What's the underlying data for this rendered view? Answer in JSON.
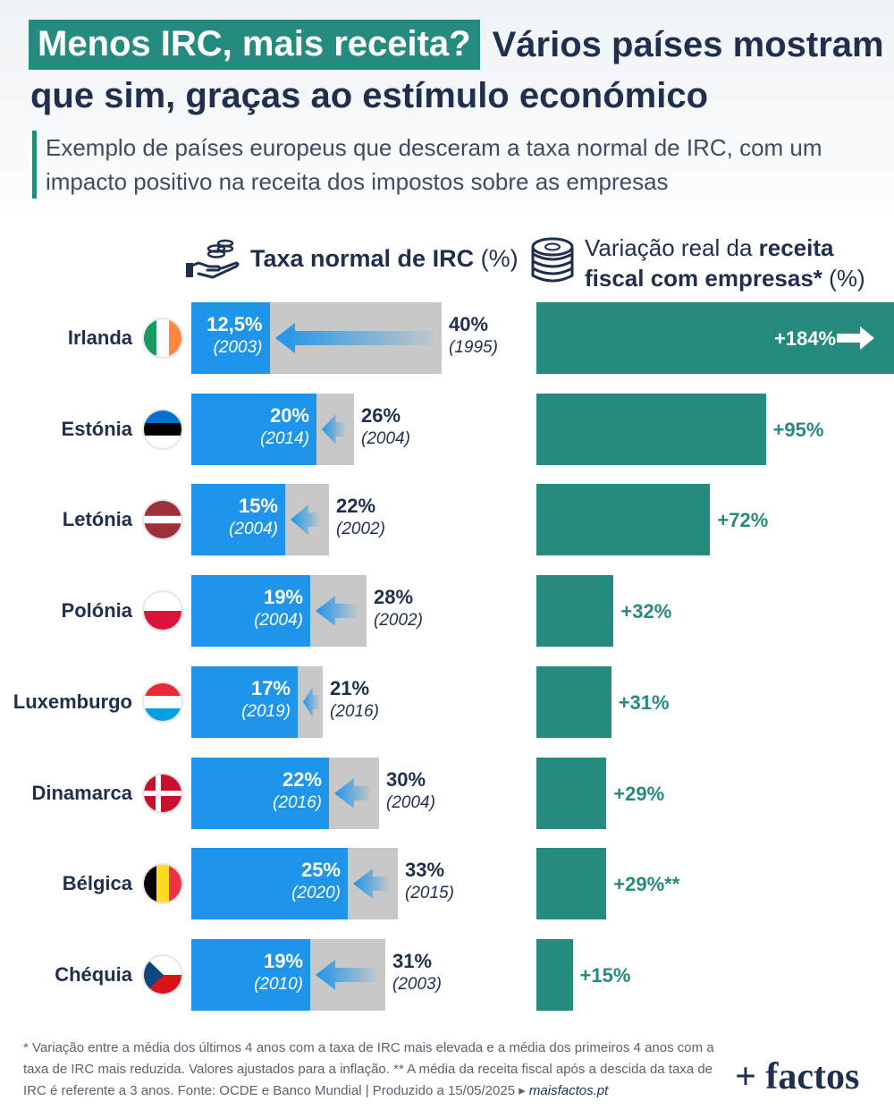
{
  "title": {
    "highlight": "Menos IRC, mais receita?",
    "rest_line1": "Vários países mostram",
    "line2": "que sim, graças ao estímulo económico"
  },
  "subtitle": "Exemplo de países europeus que desceram a taxa normal de IRC, com um impacto positivo na receita dos impostos sobre as empresas",
  "headers": {
    "left_bold": "Taxa normal de IRC",
    "left_unit": "(%)",
    "right_line1_normal": "Variação real da ",
    "right_line1_bold": "receita",
    "right_line2_bold": "fiscal com empresas*",
    "right_line2_unit": "(%)"
  },
  "icons": {
    "left_header": "hand-coins-icon",
    "right_header": "coin-stack-icon",
    "arrow_left": "arrow-left-icon",
    "arrow_right": "arrow-right-icon"
  },
  "colors": {
    "accent": "#258b7f",
    "blue": "#1e95ea",
    "grey": "#c8c8c8",
    "navy": "#1f2f4d"
  },
  "chart_data": {
    "type": "bar",
    "categories": [
      "Irlanda",
      "Estónia",
      "Letónia",
      "Polónia",
      "Luxemburgo",
      "Dinamarca",
      "Bélgica",
      "Chéquia"
    ],
    "series": [
      {
        "name": "Taxa normal de IRC",
        "old_rate": [
          40,
          26,
          22,
          28,
          21,
          30,
          33,
          31
        ],
        "old_rate_label": [
          "40%",
          "26%",
          "22%",
          "28%",
          "21%",
          "30%",
          "33%",
          "31%"
        ],
        "old_year": [
          "(1995)",
          "(2004)",
          "(2002)",
          "(2002)",
          "(2016)",
          "(2004)",
          "(2015)",
          "(2003)"
        ],
        "new_rate": [
          12.5,
          20,
          15,
          19,
          17,
          22,
          25,
          19
        ],
        "new_rate_label": [
          "12,5%",
          "20%",
          "15%",
          "19%",
          "17%",
          "22%",
          "25%",
          "19%"
        ],
        "new_year": [
          "(2003)",
          "(2014)",
          "(2004)",
          "(2004)",
          "(2019)",
          "(2016)",
          "(2020)",
          "(2010)"
        ]
      },
      {
        "name": "Variação real da receita fiscal com empresas*",
        "values": [
          184,
          95,
          72,
          32,
          31,
          29,
          29,
          15
        ],
        "labels": [
          "+184%",
          "+95%",
          "+72%",
          "+32%",
          "+31%",
          "+29%",
          "+29%**",
          "+15%"
        ]
      }
    ],
    "flags": [
      "ireland",
      "estonia",
      "latvia",
      "poland",
      "luxembourg",
      "denmark",
      "belgium",
      "czechia"
    ]
  },
  "footnote": {
    "text": "* Variação entre a média dos últimos 4 anos com a taxa de IRC mais elevada e a média dos primeiros 4 anos com a taxa de IRC mais reduzida. Valores ajustados para a inflação. ** A média da receita fiscal após a descida da taxa de IRC é referente a 3 anos. Fonte: OCDE e Banco Mundial  |  Produzido a 15/05/2025 ▸ ",
    "site": "maisfactos.pt"
  },
  "logo": "+ factos"
}
